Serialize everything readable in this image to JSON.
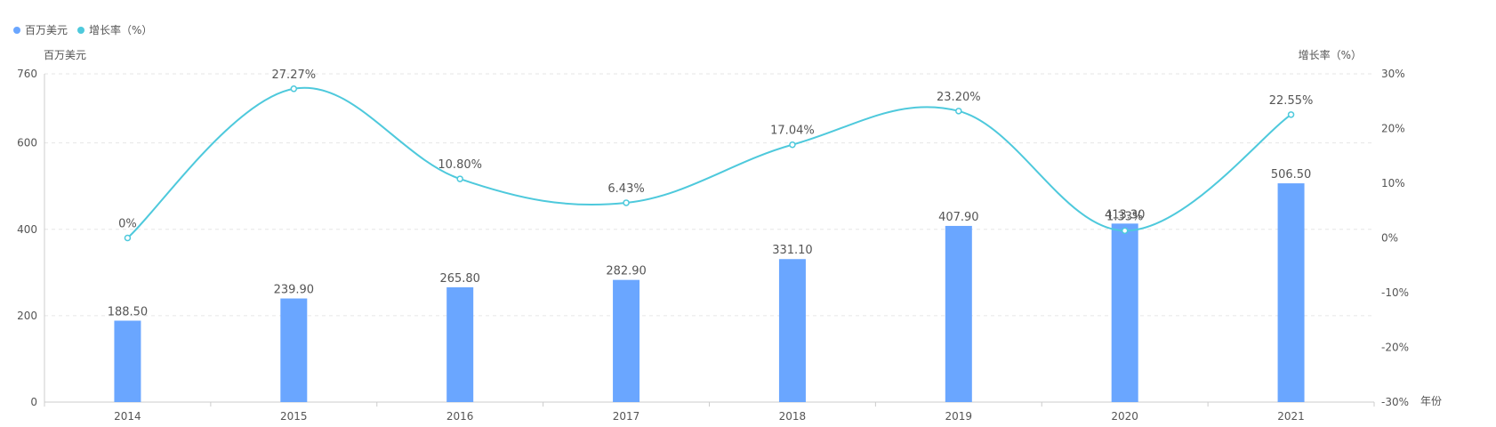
{
  "chart_data": {
    "type": "bar",
    "categories": [
      "2014",
      "2015",
      "2016",
      "2017",
      "2018",
      "2019",
      "2020",
      "2021"
    ],
    "series": [
      {
        "name": "百万美元",
        "type": "bar",
        "axis": "left",
        "values": [
          188.5,
          239.9,
          265.8,
          282.9,
          331.1,
          407.9,
          413.3,
          506.5
        ],
        "labels": [
          "188.50",
          "239.90",
          "265.80",
          "282.90",
          "331.10",
          "407.90",
          "413.30",
          "506.50"
        ]
      },
      {
        "name": "增长率（%）",
        "type": "line",
        "smooth": true,
        "axis": "right",
        "values": [
          0,
          27.27,
          10.8,
          6.43,
          17.04,
          23.2,
          1.33,
          22.55
        ],
        "labels": [
          "0%",
          "27.27%",
          "10.80%",
          "6.43%",
          "17.04%",
          "23.20%",
          "1.33%",
          "22.55%"
        ]
      }
    ],
    "left_axis": {
      "label": "百万美元",
      "ylim": [
        0,
        760
      ],
      "ticks": [
        "0",
        "200",
        "400",
        "600",
        "760"
      ],
      "tick_values": [
        0,
        200,
        400,
        600,
        760
      ]
    },
    "right_axis": {
      "label": "增长率（%）",
      "ylim": [
        -30,
        30
      ],
      "ticks": [
        "-30%",
        "-20%",
        "-10%",
        "0%",
        "10%",
        "20%",
        "30%"
      ],
      "tick_values": [
        -30,
        -20,
        -10,
        0,
        10,
        20,
        30
      ]
    },
    "xlabel": "年份",
    "grid": true,
    "legend_position": "top-left",
    "colors": {
      "bar": "#6aa6ff",
      "line": "#4ec9dc",
      "grid": "#e6e6e6",
      "axis": "#cccccc",
      "text": "#555555"
    }
  }
}
